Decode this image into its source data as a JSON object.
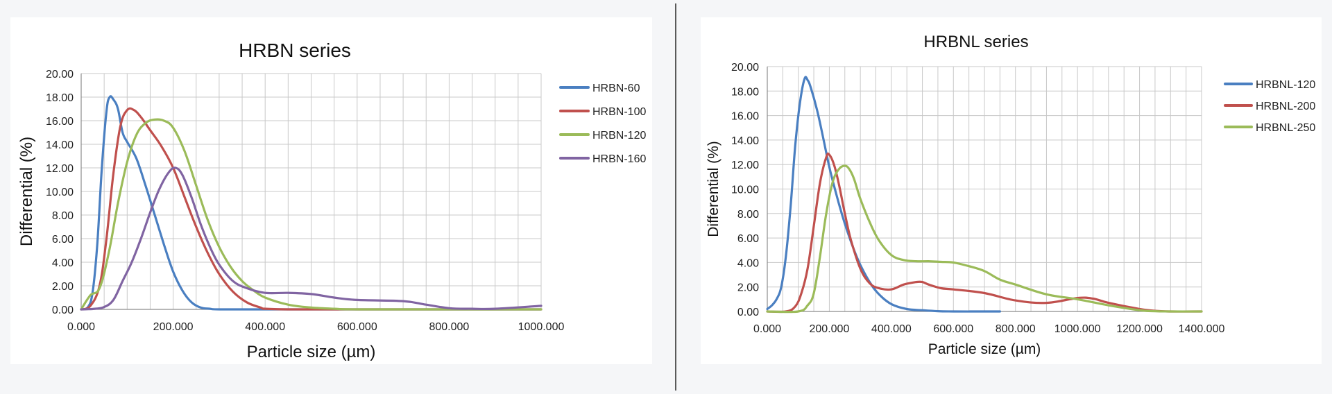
{
  "chart_data": [
    {
      "type": "line",
      "title": "HRBN series",
      "xlabel": "Particle size (µm)",
      "ylabel": "Differential (%)",
      "xlim": [
        0,
        1000
      ],
      "ylim": [
        0,
        20
      ],
      "x_ticks": [
        0,
        200,
        400,
        600,
        800,
        1000
      ],
      "x_tick_labels": [
        "0.000",
        "200.000",
        "400.000",
        "600.000",
        "800.000",
        "1000.000"
      ],
      "y_ticks": [
        0,
        2,
        4,
        6,
        8,
        10,
        12,
        14,
        16,
        18,
        20
      ],
      "y_tick_labels": [
        "0.00",
        "2.00",
        "4.00",
        "6.00",
        "8.00",
        "10.00",
        "12.00",
        "14.00",
        "16.00",
        "18.00",
        "20.00"
      ],
      "x_grid_step": 50,
      "grid": true,
      "legend_position": "right",
      "series": [
        {
          "name": "HRBN-60",
          "color": "#4a7fc1",
          "x": [
            0,
            15,
            25,
            35,
            45,
            55,
            62,
            70,
            80,
            90,
            100,
            120,
            140,
            160,
            180,
            200,
            220,
            240,
            260,
            280,
            300,
            400,
            600,
            800,
            1000
          ],
          "y": [
            0,
            0.2,
            1.5,
            5.5,
            12.0,
            16.8,
            18.0,
            17.8,
            17.0,
            15.0,
            14.2,
            12.8,
            10.5,
            8.0,
            5.5,
            3.2,
            1.6,
            0.6,
            0.15,
            0.05,
            0,
            0,
            0,
            0,
            0
          ]
        },
        {
          "name": "HRBN-100",
          "color": "#c0504d",
          "x": [
            0,
            20,
            40,
            55,
            70,
            85,
            100,
            115,
            130,
            150,
            175,
            200,
            225,
            250,
            275,
            300,
            330,
            360,
            390,
            400,
            450,
            600,
            800,
            1000
          ],
          "y": [
            0,
            0.3,
            2.0,
            6.0,
            11.5,
            15.5,
            16.9,
            16.9,
            16.3,
            15.2,
            13.8,
            12.0,
            9.5,
            7.0,
            4.8,
            3.0,
            1.5,
            0.6,
            0.15,
            0.05,
            0,
            0,
            0,
            0
          ]
        },
        {
          "name": "HRBN-120",
          "color": "#9bbb59",
          "x": [
            0,
            20,
            40,
            60,
            80,
            100,
            120,
            140,
            160,
            180,
            200,
            225,
            250,
            275,
            300,
            325,
            350,
            375,
            400,
            450,
            500,
            550,
            600,
            800,
            1000
          ],
          "y": [
            0,
            1.2,
            1.8,
            4.8,
            9.0,
            12.5,
            14.8,
            15.8,
            16.1,
            16.0,
            15.4,
            13.4,
            10.5,
            7.6,
            5.3,
            3.6,
            2.4,
            1.6,
            1.0,
            0.4,
            0.15,
            0.05,
            0,
            0,
            0
          ]
        },
        {
          "name": "HRBN-160",
          "color": "#8064a2",
          "x": [
            0,
            30,
            50,
            70,
            90,
            110,
            130,
            150,
            170,
            190,
            205,
            220,
            240,
            260,
            280,
            300,
            330,
            360,
            400,
            450,
            500,
            550,
            600,
            700,
            750,
            800,
            850,
            900,
            1000
          ],
          "y": [
            0,
            0.05,
            0.2,
            0.8,
            2.4,
            4.0,
            6.0,
            8.2,
            10.2,
            11.6,
            12.0,
            11.4,
            9.5,
            7.2,
            5.3,
            3.8,
            2.4,
            1.8,
            1.4,
            1.4,
            1.3,
            1.0,
            0.8,
            0.7,
            0.4,
            0.1,
            0.05,
            0.05,
            0.3
          ]
        }
      ]
    },
    {
      "type": "line",
      "title": "HRBNL series",
      "xlabel": "Particle size (µm)",
      "ylabel": "Differential (%)",
      "xlim": [
        0,
        1400
      ],
      "ylim": [
        0,
        20
      ],
      "x_ticks": [
        0,
        200,
        400,
        600,
        800,
        1000,
        1200,
        1400
      ],
      "x_tick_labels": [
        "0.000",
        "200.000",
        "400.000",
        "600.000",
        "800.000",
        "1000.000",
        "1200.000",
        "1400.000"
      ],
      "y_ticks": [
        0,
        2,
        4,
        6,
        8,
        10,
        12,
        14,
        16,
        18,
        20
      ],
      "y_tick_labels": [
        "0.00",
        "2.00",
        "4.00",
        "6.00",
        "8.00",
        "10.00",
        "12.00",
        "14.00",
        "16.00",
        "18.00",
        "20.00"
      ],
      "x_grid_step": 50,
      "grid": true,
      "legend_position": "right",
      "series": [
        {
          "name": "HRBNL-120",
          "color": "#4a7fc1",
          "x": [
            0,
            15,
            30,
            45,
            60,
            75,
            90,
            105,
            120,
            130,
            140,
            160,
            180,
            200,
            220,
            240,
            260,
            280,
            300,
            330,
            360,
            400,
            450,
            500,
            550,
            600,
            700,
            750
          ],
          "y": [
            0.2,
            0.5,
            1.0,
            2.0,
            4.5,
            8.5,
            13.5,
            17.0,
            19.0,
            18.9,
            18.3,
            16.5,
            14.2,
            11.8,
            9.8,
            8.0,
            6.4,
            5.0,
            3.8,
            2.4,
            1.4,
            0.6,
            0.2,
            0.1,
            0.02,
            0,
            0,
            0
          ]
        },
        {
          "name": "HRBNL-200",
          "color": "#c0504d",
          "x": [
            0,
            60,
            90,
            110,
            130,
            150,
            170,
            190,
            200,
            215,
            230,
            250,
            270,
            300,
            330,
            360,
            400,
            440,
            480,
            500,
            520,
            560,
            600,
            700,
            800,
            900,
            1000,
            1050,
            1100,
            1200,
            1250,
            1300,
            1400
          ],
          "y": [
            0,
            0,
            0.4,
            1.5,
            3.5,
            7.0,
            10.5,
            12.6,
            12.8,
            12.0,
            10.5,
            8.0,
            5.8,
            3.5,
            2.3,
            1.9,
            1.8,
            2.2,
            2.4,
            2.4,
            2.2,
            1.9,
            1.8,
            1.5,
            0.9,
            0.7,
            1.1,
            1.05,
            0.7,
            0.2,
            0.05,
            0,
            0
          ]
        },
        {
          "name": "HRBNL-250",
          "color": "#9bbb59",
          "x": [
            0,
            100,
            130,
            150,
            170,
            190,
            210,
            230,
            250,
            265,
            280,
            300,
            330,
            360,
            400,
            440,
            480,
            520,
            560,
            600,
            650,
            700,
            750,
            800,
            900,
            1000,
            1100,
            1200,
            1250,
            1300,
            1400
          ],
          "y": [
            0,
            0,
            0.5,
            1.5,
            4.5,
            8.0,
            10.5,
            11.6,
            11.9,
            11.6,
            10.8,
            9.2,
            7.3,
            5.8,
            4.6,
            4.2,
            4.1,
            4.1,
            4.05,
            4.0,
            3.7,
            3.3,
            2.6,
            2.2,
            1.4,
            1.0,
            0.5,
            0.1,
            0.02,
            0,
            0
          ]
        }
      ]
    }
  ]
}
